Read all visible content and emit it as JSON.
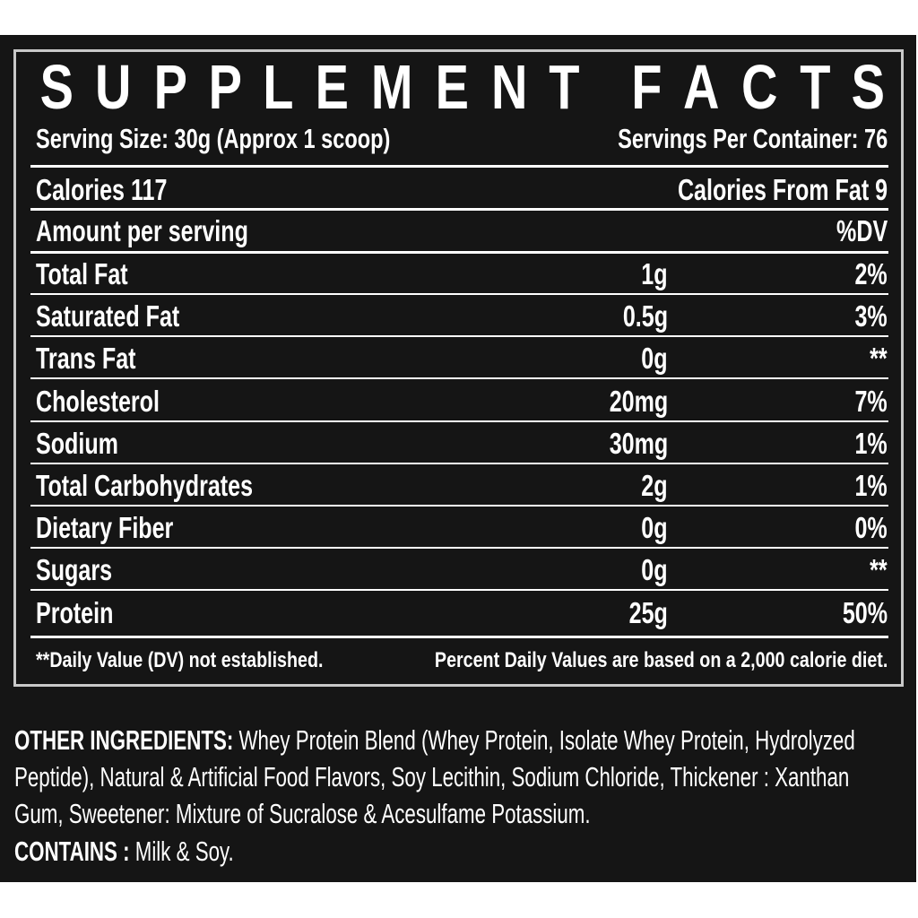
{
  "title": "SUPPLEMENT FACTS",
  "serving_size": "Serving Size: 30g  (Approx 1 scoop)",
  "servings_per_container": "Servings Per Container: 76",
  "calories": "Calories 117",
  "calories_from_fat": "Calories From Fat 9",
  "amount_per_serving": "Amount per serving",
  "dv_header": "%DV",
  "nutrients": [
    {
      "name": "Total Fat",
      "amount": "1g",
      "dv": "2%"
    },
    {
      "name": "Saturated Fat",
      "amount": "0.5g",
      "dv": "3%"
    },
    {
      "name": "Trans Fat",
      "amount": "0g",
      "dv": "**"
    },
    {
      "name": "Cholesterol",
      "amount": "20mg",
      "dv": "7%"
    },
    {
      "name": "Sodium",
      "amount": "30mg",
      "dv": "1%"
    },
    {
      "name": "Total Carbohydrates",
      "amount": "2g",
      "dv": "1%"
    },
    {
      "name": "Dietary Fiber",
      "amount": "0g",
      "dv": "0%"
    },
    {
      "name": "Sugars",
      "amount": "0g",
      "dv": "**"
    },
    {
      "name": "Protein",
      "amount": "25g",
      "dv": "50%"
    }
  ],
  "footnote_left": "**Daily Value (DV) not established.",
  "footnote_right": "Percent Daily Values are based on a 2,000 calorie diet.",
  "other_ingredients_label": "OTHER INGREDIENTS:",
  "other_ingredients_lines": [
    " Whey Protein Blend (Whey Protein, Isolate Whey Protein, Hydrolyzed",
    "Peptide), Natural & Artificial Food Flavors, Soy Lecithin, Sodium Chloride, Thickener : Xanthan",
    "Gum, Sweetener: Mixture of Sucralose & Acesulfame Potassium."
  ],
  "contains_label": "CONTAINS :",
  "contains_value": " Milk & Soy.",
  "colors": {
    "background": "#151515",
    "text": "#ffffff",
    "border": "#c8c8c8"
  }
}
